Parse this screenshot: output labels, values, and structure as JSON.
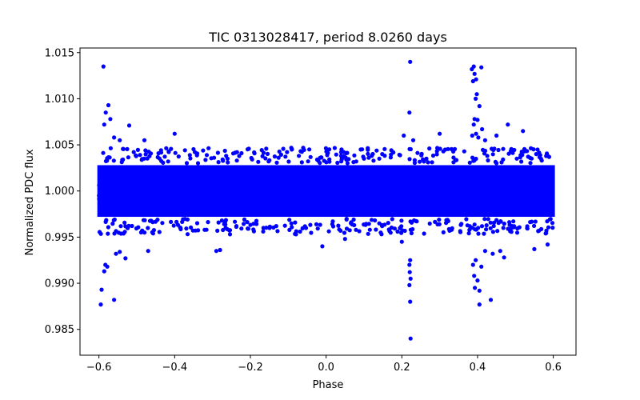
{
  "chart_data": {
    "type": "scatter",
    "title": "TIC 0313028417, period 8.0260 days",
    "xlabel": "Phase",
    "ylabel": "Normalized PDC flux",
    "xlim": [
      -0.65,
      0.66
    ],
    "ylim": [
      0.9822,
      1.0155
    ],
    "xticks": [
      -0.6,
      -0.4,
      -0.2,
      0.0,
      0.2,
      0.4,
      0.6
    ],
    "xtick_labels": [
      "−0.6",
      "−0.4",
      "−0.2",
      "0.0",
      "0.2",
      "0.4",
      "0.6"
    ],
    "yticks": [
      0.985,
      0.99,
      0.995,
      1.0,
      1.005,
      1.01,
      1.015
    ],
    "ytick_labels": [
      "0.985",
      "0.990",
      "0.995",
      "1.000",
      "1.005",
      "1.010",
      "1.015"
    ],
    "grid": false,
    "marker_color": "#0000ff",
    "band": {
      "x_range": [
        -0.6,
        0.6
      ],
      "core_range": [
        0.9972,
        1.0028
      ],
      "envelope_range": [
        0.9955,
        1.0045
      ]
    },
    "series": [
      {
        "name": "outliers",
        "points": [
          [
            -0.588,
            1.0135
          ],
          [
            -0.575,
            1.0093
          ],
          [
            -0.582,
            1.0085
          ],
          [
            -0.57,
            1.0078
          ],
          [
            -0.586,
            1.0072
          ],
          [
            -0.56,
            1.0058
          ],
          [
            -0.545,
            1.0055
          ],
          [
            -0.52,
            1.0071
          ],
          [
            -0.48,
            1.0055
          ],
          [
            -0.4,
            1.0062
          ],
          [
            -0.593,
            0.9893
          ],
          [
            -0.595,
            0.9877
          ],
          [
            -0.56,
            0.9882
          ],
          [
            -0.583,
            0.992
          ],
          [
            -0.578,
            0.9918
          ],
          [
            -0.586,
            0.9913
          ],
          [
            -0.555,
            0.9932
          ],
          [
            -0.545,
            0.9934
          ],
          [
            -0.53,
            0.9927
          ],
          [
            -0.47,
            0.9935
          ],
          [
            -0.29,
            0.9935
          ],
          [
            -0.28,
            0.9936
          ],
          [
            -0.01,
            0.994
          ],
          [
            0.05,
            0.9948
          ],
          [
            0.222,
            1.014
          ],
          [
            0.22,
            1.0085
          ],
          [
            0.222,
            0.9925
          ],
          [
            0.22,
            0.992
          ],
          [
            0.221,
            0.9912
          ],
          [
            0.223,
            0.9905
          ],
          [
            0.22,
            0.9898
          ],
          [
            0.222,
            0.988
          ],
          [
            0.223,
            0.984
          ],
          [
            0.2,
            0.9945
          ],
          [
            0.205,
            1.006
          ],
          [
            0.3,
            1.0062
          ],
          [
            0.23,
            1.0055
          ],
          [
            0.39,
            1.0135
          ],
          [
            0.385,
            1.0132
          ],
          [
            0.41,
            1.0134
          ],
          [
            0.392,
            1.0127
          ],
          [
            0.396,
            1.0121
          ],
          [
            0.388,
            1.0119
          ],
          [
            0.398,
            1.0105
          ],
          [
            0.395,
            1.01
          ],
          [
            0.405,
            1.0092
          ],
          [
            0.392,
            1.0078
          ],
          [
            0.4,
            1.0077
          ],
          [
            0.39,
            1.0072
          ],
          [
            0.412,
            1.0067
          ],
          [
            0.396,
            1.0062
          ],
          [
            0.402,
            1.0058
          ],
          [
            0.386,
            1.006
          ],
          [
            0.42,
            1.0055
          ],
          [
            0.45,
            1.006
          ],
          [
            0.48,
            1.0072
          ],
          [
            0.52,
            1.0065
          ],
          [
            0.395,
            0.9925
          ],
          [
            0.388,
            0.992
          ],
          [
            0.391,
            0.9908
          ],
          [
            0.393,
            0.9895
          ],
          [
            0.405,
            0.9892
          ],
          [
            0.4,
            0.9903
          ],
          [
            0.41,
            0.9918
          ],
          [
            0.405,
            0.9877
          ],
          [
            0.435,
            0.9882
          ],
          [
            0.44,
            0.9932
          ],
          [
            0.46,
            0.9935
          ],
          [
            0.47,
            0.9928
          ],
          [
            0.55,
            0.9937
          ],
          [
            0.585,
            0.9942
          ],
          [
            0.42,
            0.9935
          ]
        ]
      }
    ]
  }
}
